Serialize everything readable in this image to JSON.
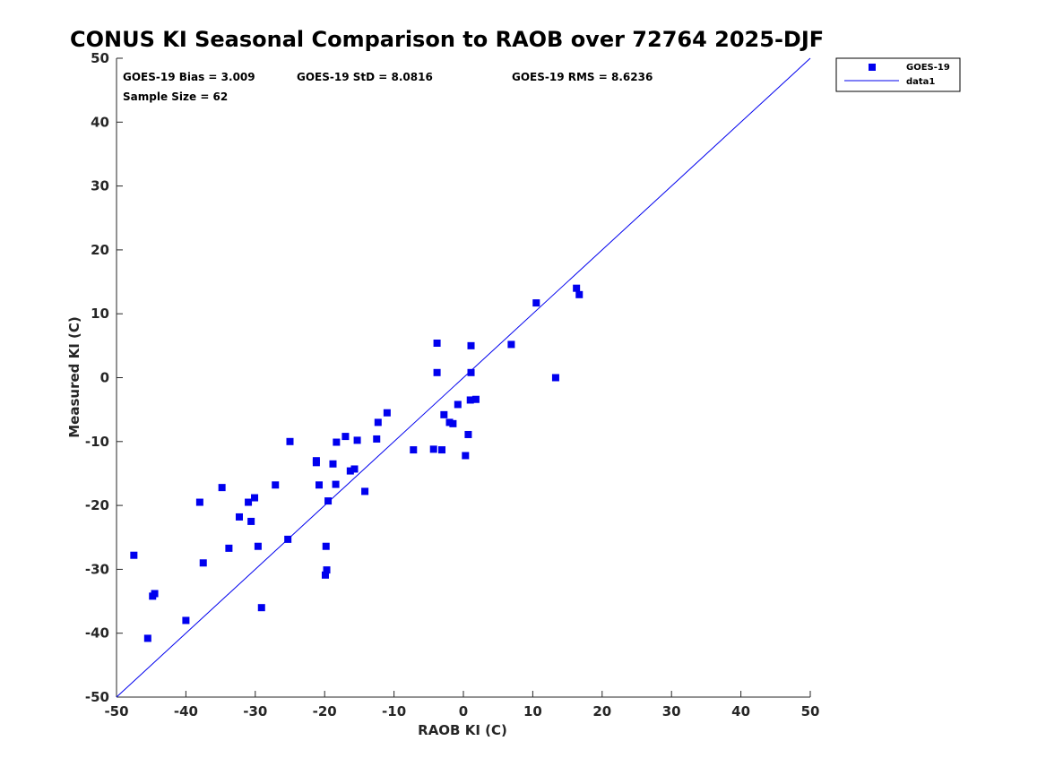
{
  "chart_data": {
    "type": "scatter",
    "title": "CONUS KI Seasonal Comparison to RAOB over 72764 2025-DJF",
    "xlabel": "RAOB KI (C)",
    "ylabel": "Measured KI (C)",
    "xlim": [
      -50,
      50
    ],
    "ylim": [
      -50,
      50
    ],
    "xticks": [
      -50,
      -40,
      -30,
      -20,
      -10,
      0,
      10,
      20,
      30,
      40,
      50
    ],
    "yticks": [
      -50,
      -40,
      -30,
      -20,
      -10,
      0,
      10,
      20,
      30,
      40,
      50
    ],
    "marker_color": "#0000ee",
    "line_color": "#0000ee",
    "annotations": {
      "bias": "GOES-19 Bias = 3.009",
      "std": "GOES-19 StD = 8.0816",
      "rms": "GOES-19 RMS = 8.6236",
      "sample": "Sample Size = 62"
    },
    "legend": {
      "location": "top-right",
      "entries": [
        "GOES-19",
        "data1"
      ]
    },
    "series": [
      {
        "name": "GOES-19",
        "kind": "scatter",
        "points": [
          [
            -47.5,
            -27.8
          ],
          [
            -45.5,
            -40.8
          ],
          [
            -44.8,
            -34.2
          ],
          [
            -44.5,
            -33.8
          ],
          [
            -40,
            -38
          ],
          [
            -38,
            -19.5
          ],
          [
            -37.5,
            -29
          ],
          [
            -34.8,
            -17.2
          ],
          [
            -33.8,
            -26.7
          ],
          [
            -32.3,
            -21.8
          ],
          [
            -31,
            -19.5
          ],
          [
            -30.6,
            -22.5
          ],
          [
            -30.1,
            -18.8
          ],
          [
            -29.6,
            -26.4
          ],
          [
            -29.1,
            -36
          ],
          [
            -27.1,
            -16.8
          ],
          [
            -25.3,
            -25.3
          ],
          [
            -25,
            -10
          ],
          [
            -21.2,
            -13
          ],
          [
            -21.2,
            -13.3
          ],
          [
            -20.8,
            -16.8
          ],
          [
            -19.8,
            -26.4
          ],
          [
            -19.9,
            -30.9
          ],
          [
            -19.7,
            -30.1
          ],
          [
            -19.5,
            -19.3
          ],
          [
            -18.8,
            -13.5
          ],
          [
            -18.4,
            -16.7
          ],
          [
            -18.3,
            -10.1
          ],
          [
            -17,
            -9.2
          ],
          [
            -16.3,
            -14.6
          ],
          [
            -15.7,
            -14.3
          ],
          [
            -15.3,
            -9.8
          ],
          [
            -14.2,
            -17.8
          ],
          [
            -12.5,
            -9.6
          ],
          [
            -12.3,
            -7
          ],
          [
            -11,
            -5.5
          ],
          [
            -7.2,
            -11.3
          ],
          [
            -4.3,
            -11.2
          ],
          [
            -3.8,
            5.4
          ],
          [
            -3.8,
            0.8
          ],
          [
            -3.1,
            -11.3
          ],
          [
            -2.8,
            -5.8
          ],
          [
            -2,
            -7
          ],
          [
            -1.5,
            -7.2
          ],
          [
            -0.8,
            -4.2
          ],
          [
            0.3,
            -12.2
          ],
          [
            0.7,
            -8.9
          ],
          [
            1,
            -3.5
          ],
          [
            1.1,
            5
          ],
          [
            1.1,
            0.8
          ],
          [
            1.8,
            -3.4
          ],
          [
            6.9,
            5.2
          ],
          [
            10.5,
            11.7
          ],
          [
            13.3,
            0
          ],
          [
            16.3,
            14
          ],
          [
            16.7,
            13
          ]
        ]
      },
      {
        "name": "data1",
        "kind": "line",
        "points": [
          [
            -50,
            -50
          ],
          [
            50,
            50
          ]
        ]
      }
    ]
  }
}
